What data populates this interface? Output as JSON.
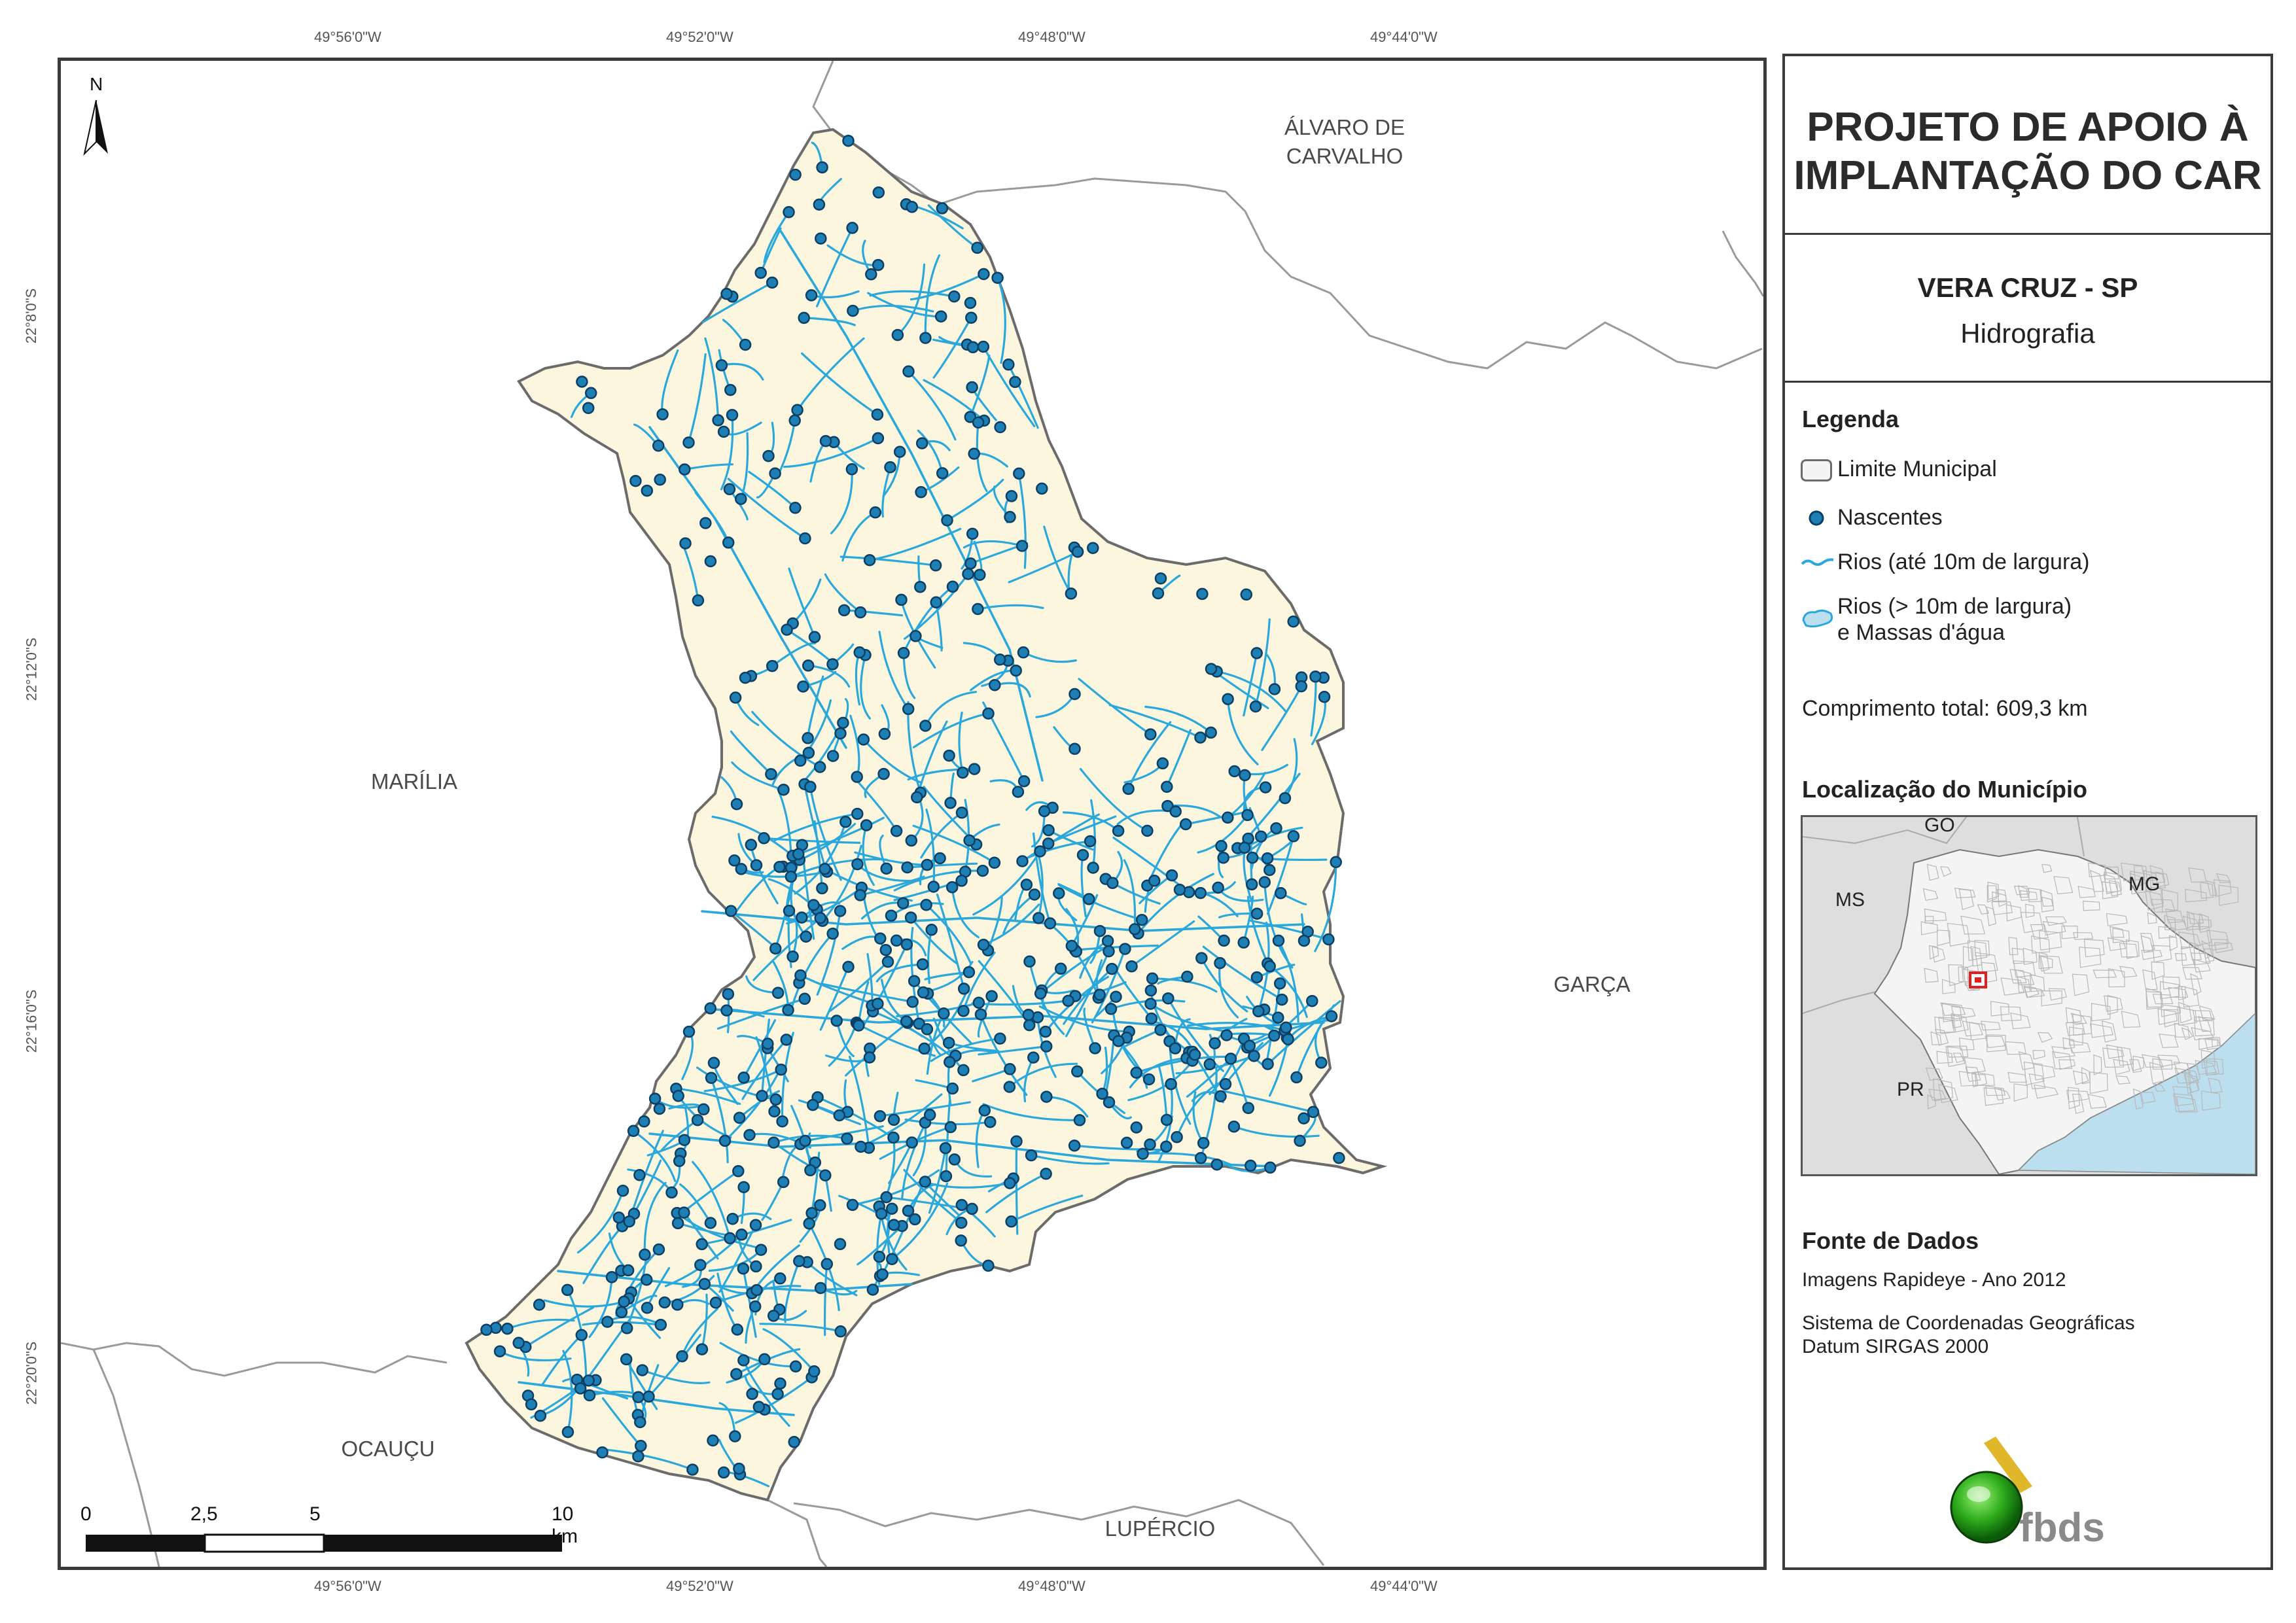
{
  "colors": {
    "municipality_fill": "#fdf6df",
    "river": "#2aa8dc",
    "spring_fill": "#1e7fb4",
    "spring_stroke": "#0c3f63",
    "neighbor_border": "#9a9a9a",
    "inset_land": "#f4f4f4",
    "inset_outside": "#dedede",
    "inset_ocean": "#bcdff0",
    "inset_marker": "#e02020"
  },
  "map": {
    "north_label": "N",
    "coords_top": [
      "49°56'0\"W",
      "49°52'0\"W",
      "49°48'0\"W",
      "49°44'0\"W"
    ],
    "coords_bottom": [
      "49°56'0\"W",
      "49°52'0\"W",
      "49°48'0\"W",
      "49°44'0\"W"
    ],
    "coords_left": [
      "22°8'0\"S",
      "22°12'0\"S",
      "22°16'0\"S",
      "22°20'0\"S"
    ],
    "neighbors": {
      "alvaro_line1": "ÁLVARO DE",
      "alvaro_line2": "CARVALHO",
      "marilia": "MARÍLIA",
      "garca": "GARÇA",
      "ocaucu": "OCAUÇU",
      "lupercio": "LUPÉRCIO"
    },
    "scale": {
      "labels": [
        "0",
        "2,5",
        "5",
        "10 km"
      ]
    }
  },
  "panel": {
    "title_line1": "PROJETO DE APOIO À",
    "title_line2": "IMPLANTAÇÃO DO CAR",
    "municipality": "VERA CRUZ - SP",
    "theme": "Hidrografia",
    "legend_heading": "Legenda",
    "legend": {
      "limit": "Limite Municipal",
      "springs": "Nascentes",
      "rivers_small": "Rios (até 10m de largura)",
      "rivers_large_line1": "Rios (> 10m de largura)",
      "rivers_large_line2": "e Massas d'água"
    },
    "total_length": "Comprimento total: 609,3 km",
    "location_heading": "Localização do Município",
    "inset_labels": {
      "go": "GO",
      "ms": "MS",
      "mg": "MG",
      "pr": "PR"
    },
    "source_heading": "Fonte de Dados",
    "source_line1": "Imagens Rapideye - Ano 2012",
    "source_line2": "Sistema de Coordenadas Geográficas",
    "source_line3": "Datum SIRGAS 2000",
    "logo_text": "fbds"
  }
}
